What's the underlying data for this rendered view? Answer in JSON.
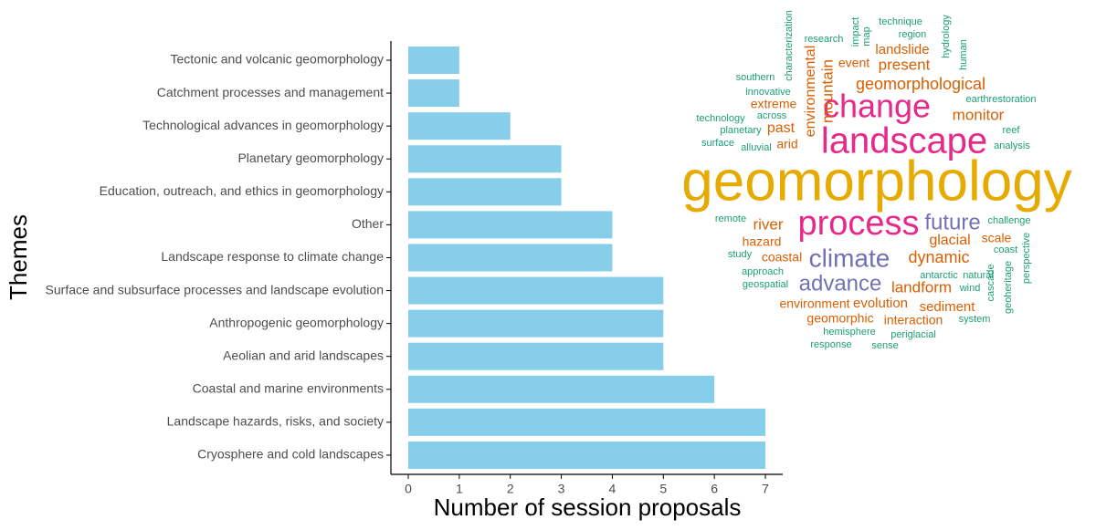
{
  "chart_data": [
    {
      "type": "barh",
      "x_label": "Number of session proposals",
      "y_label": "Themes",
      "categories": [
        "Tectonic and volcanic geomorphology",
        "Catchment processes and management",
        "Technological advances in geomorphology",
        "Planetary geomorphology",
        "Education, outreach, and ethics in geomorphology",
        "Other",
        "Landscape response to climate change",
        "Surface and subsurface processes and landscape evolution",
        "Anthropogenic geomorphology",
        "Aeolian and arid landscapes",
        "Coastal and marine environments",
        "Landscape hazards, risks, and society",
        "Cryosphere and cold landscapes"
      ],
      "values": [
        1,
        1,
        2,
        3,
        3,
        4,
        4,
        5,
        5,
        5,
        6,
        7,
        7
      ],
      "color": "#87ceeb",
      "xlim": [
        -0.34,
        7.34
      ],
      "xticks": [
        0,
        1,
        2,
        3,
        4,
        5,
        6,
        7
      ],
      "grid": false
    },
    {
      "type": "wordcloud",
      "words": [
        "geomorphology",
        "landscape",
        "change",
        "process",
        "climate",
        "future",
        "advance",
        "geomorphological",
        "present",
        "landslide",
        "event",
        "monitor",
        "extreme",
        "past",
        "arid",
        "environmental",
        "mountain",
        "river",
        "hazard",
        "coastal",
        "dynamic",
        "glacial",
        "scale",
        "landform",
        "evolution",
        "environment",
        "sediment",
        "geomorphic",
        "interaction",
        "technique",
        "region",
        "research",
        "impact",
        "map",
        "hydrology",
        "human",
        "characterization",
        "southern",
        "innovative",
        "earthrestoration",
        "across",
        "technology",
        "planetary",
        "reef",
        "surface",
        "alluvial",
        "analysis",
        "remote",
        "challenge",
        "study",
        "coast",
        "approach",
        "antarctic",
        "natural",
        "cascade",
        "geoheritage",
        "perspective",
        "geospatial",
        "wind",
        "system",
        "hemisphere",
        "periglacial",
        "response",
        "sense"
      ],
      "colors": [
        "#e6ab02",
        "#e7298a",
        "#e7298a",
        "#e7298a",
        "#7570b3",
        "#7570b3",
        "#7570b3",
        "#d95f02",
        "#d95f02",
        "#d95f02",
        "#d95f02",
        "#d95f02",
        "#d95f02",
        "#d95f02",
        "#d95f02",
        "#d95f02",
        "#d95f02",
        "#d95f02",
        "#d95f02",
        "#d95f02",
        "#d95f02",
        "#d95f02",
        "#d95f02",
        "#d95f02",
        "#d95f02",
        "#d95f02",
        "#d95f02",
        "#d95f02",
        "#d95f02",
        "#1b9e77",
        "#1b9e77",
        "#1b9e77",
        "#1b9e77",
        "#1b9e77",
        "#1b9e77",
        "#1b9e77",
        "#1b9e77",
        "#1b9e77",
        "#1b9e77",
        "#1b9e77",
        "#1b9e77",
        "#1b9e77",
        "#1b9e77",
        "#1b9e77",
        "#1b9e77",
        "#1b9e77",
        "#1b9e77",
        "#1b9e77",
        "#1b9e77",
        "#1b9e77",
        "#1b9e77",
        "#1b9e77",
        "#1b9e77",
        "#1b9e77",
        "#1b9e77",
        "#1b9e77",
        "#1b9e77",
        "#1b9e77",
        "#1b9e77",
        "#1b9e77",
        "#1b9e77",
        "#1b9e77",
        "#1b9e77",
        "#1b9e77"
      ]
    }
  ]
}
